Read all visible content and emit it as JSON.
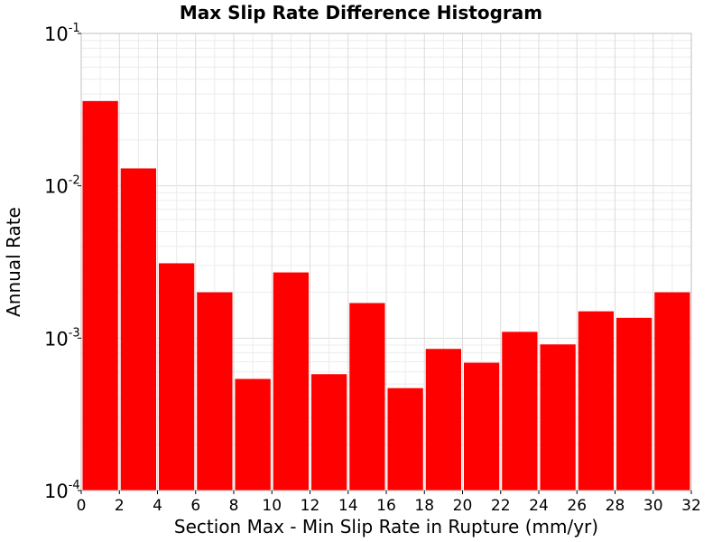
{
  "chart_data": {
    "type": "bar",
    "title": "Max Slip Rate Difference Histogram",
    "xlabel": "Section Max - Min Slip Rate in Rupture (mm/yr)",
    "ylabel": "Annual Rate",
    "xlim": [
      0,
      32
    ],
    "ylim": [
      0.0001,
      0.1
    ],
    "yscale": "log",
    "bin_width": 2,
    "x": [
      1,
      3,
      5,
      7,
      9,
      11,
      13,
      15,
      17,
      19,
      21,
      23,
      25,
      27,
      29,
      31
    ],
    "values": [
      0.036,
      0.013,
      0.0031,
      0.002,
      0.00054,
      0.0027,
      0.00058,
      0.0017,
      0.00047,
      0.00085,
      0.00069,
      0.0011,
      0.00091,
      0.0015,
      0.00136,
      0.002
    ],
    "xticks": [
      "0",
      "2",
      "4",
      "6",
      "8",
      "10",
      "12",
      "14",
      "16",
      "18",
      "20",
      "22",
      "24",
      "26",
      "28",
      "30",
      "32"
    ],
    "yticks": [
      {
        "value": 0.1,
        "base": "10",
        "exp": "-1"
      },
      {
        "value": 0.01,
        "base": "10",
        "exp": "-2"
      },
      {
        "value": 0.001,
        "base": "10",
        "exp": "-3"
      },
      {
        "value": 0.0001,
        "base": "10",
        "exp": "-4"
      }
    ],
    "grid": true,
    "bar_color": "#ff0000"
  }
}
